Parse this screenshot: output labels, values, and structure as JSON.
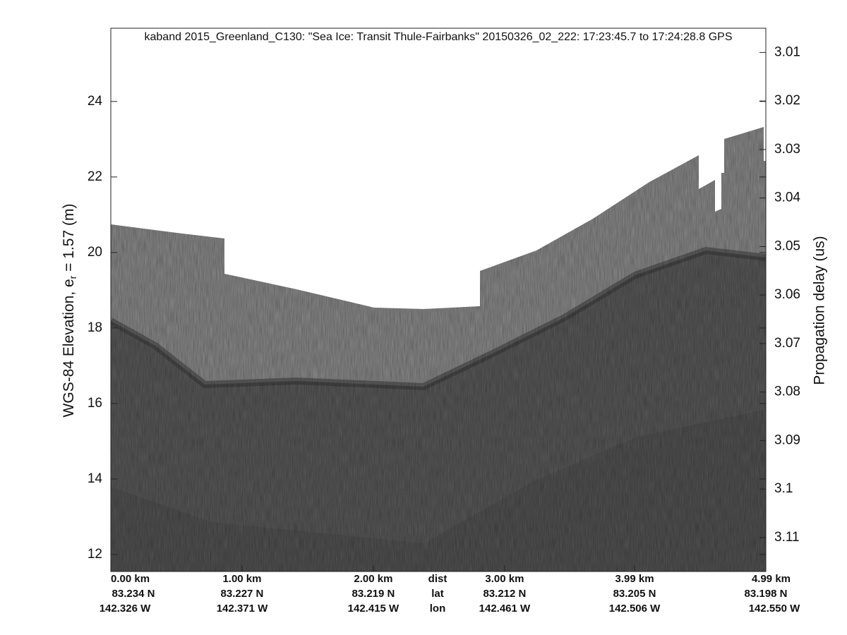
{
  "chart_data": {
    "type": "echogram",
    "title": "kaband 2015_Greenland_C130: \"Sea Ice: Transit Thule-Fairbanks\"  20150326_02_222: 17:23:45.7 to 17:24:28.8 GPS",
    "ylabel": "WGS-84 Elevation, e",
    "ylabel_sub": "r",
    "ylabel_tail": " = 1.57 (m)",
    "y2label": "Propagation delay (us)",
    "ylim": [
      11.55,
      25.94
    ],
    "yticks": [
      12,
      14,
      16,
      18,
      20,
      22,
      24
    ],
    "y2lim": [
      3.117,
      3.005
    ],
    "y2ticks": [
      3.01,
      3.02,
      3.03,
      3.04,
      3.05,
      3.06,
      3.07,
      3.08,
      3.09,
      3.1,
      3.11
    ],
    "xlim": [
      0,
      4.99
    ],
    "xticks": [
      {
        "value": 0,
        "label": "0.00 km"
      },
      {
        "value": 1.0,
        "label": "1.00 km"
      },
      {
        "value": 2.0,
        "label": "2.00 km"
      },
      {
        "value": 3.0,
        "label": "3.00 km"
      },
      {
        "value": 3.99,
        "label": "3.99 km"
      },
      {
        "value": 4.99,
        "label": "4.99 km"
      }
    ],
    "lat_labels": [
      "83.234 N",
      "83.227 N",
      "83.219 N",
      "83.212 N",
      "83.205 N",
      "83.198 N"
    ],
    "lon_labels": [
      "142.326 W",
      "142.371 W",
      "142.415 W",
      "142.461 W",
      "142.506 W",
      "142.550 W"
    ],
    "row_labels": [
      "dist",
      "lat",
      "lon"
    ]
  }
}
